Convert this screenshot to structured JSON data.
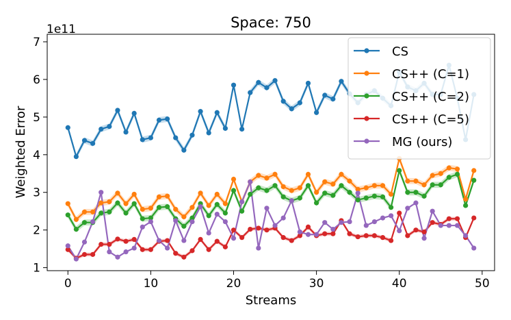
{
  "chart_data": {
    "type": "line",
    "title": "Space: 750",
    "xlabel": "Streams",
    "ylabel": "Weighted Error",
    "y_multiplier_label": "1e11",
    "xlim": [
      -2.5,
      51.5
    ],
    "ylim": [
      0.92,
      7.2
    ],
    "xticks": [
      0,
      10,
      20,
      30,
      40,
      50
    ],
    "xtick_labels": [
      "0",
      "10",
      "20",
      "30",
      "40",
      "50"
    ],
    "yticks": [
      1,
      2,
      3,
      4,
      5,
      6,
      7
    ],
    "ytick_labels": [
      "1",
      "2",
      "3",
      "4",
      "5",
      "6",
      "7"
    ],
    "grid": false,
    "legend_position": "top-right",
    "x": [
      0,
      1,
      2,
      3,
      4,
      5,
      6,
      7,
      8,
      9,
      10,
      11,
      12,
      13,
      14,
      15,
      16,
      17,
      18,
      19,
      20,
      21,
      22,
      23,
      24,
      25,
      26,
      27,
      28,
      29,
      30,
      31,
      32,
      33,
      34,
      35,
      36,
      37,
      38,
      39,
      40,
      41,
      42,
      43,
      44,
      45,
      46,
      47,
      48,
      49
    ],
    "series": [
      {
        "name": "CS",
        "color": "#1f77b4",
        "band": 0.08,
        "values": [
          4.72,
          3.95,
          4.38,
          4.3,
          4.68,
          4.75,
          5.18,
          4.6,
          5.1,
          4.4,
          4.45,
          4.92,
          4.95,
          4.45,
          4.12,
          4.52,
          5.15,
          4.58,
          5.12,
          4.7,
          5.85,
          4.68,
          5.65,
          5.92,
          5.78,
          5.97,
          5.42,
          5.22,
          5.38,
          5.9,
          5.12,
          5.58,
          5.48,
          5.95,
          5.62,
          5.38,
          5.6,
          5.7,
          5.5,
          5.3,
          6.2,
          5.8,
          5.7,
          5.9,
          5.6,
          5.6,
          6.38,
          5.5,
          4.4,
          5.6
        ]
      },
      {
        "name": "CS++ (C=1)",
        "color": "#ff7f0e",
        "band": 0.08,
        "values": [
          2.7,
          2.28,
          2.48,
          2.48,
          2.72,
          2.75,
          2.98,
          2.7,
          2.95,
          2.55,
          2.58,
          2.88,
          2.9,
          2.55,
          2.35,
          2.6,
          2.98,
          2.65,
          2.95,
          2.7,
          3.35,
          2.75,
          3.28,
          3.45,
          3.38,
          3.48,
          3.15,
          3.05,
          3.12,
          3.48,
          3.0,
          3.28,
          3.22,
          3.48,
          3.3,
          3.08,
          3.12,
          3.18,
          3.18,
          2.95,
          3.9,
          3.3,
          3.3,
          3.2,
          3.45,
          3.5,
          3.65,
          3.62,
          2.82,
          3.58
        ]
      },
      {
        "name": "CS++ (C=2)",
        "color": "#2ca02c",
        "band": 0.08,
        "values": [
          2.4,
          2.02,
          2.2,
          2.2,
          2.45,
          2.48,
          2.72,
          2.45,
          2.7,
          2.3,
          2.32,
          2.6,
          2.62,
          2.3,
          2.1,
          2.32,
          2.7,
          2.38,
          2.68,
          2.45,
          3.05,
          2.5,
          2.95,
          3.12,
          3.05,
          3.18,
          2.88,
          2.78,
          2.85,
          3.18,
          2.72,
          2.98,
          2.92,
          3.18,
          3.0,
          2.8,
          2.85,
          2.9,
          2.88,
          2.6,
          3.58,
          3.0,
          3.0,
          2.9,
          3.2,
          3.2,
          3.4,
          3.48,
          2.65,
          3.32
        ]
      },
      {
        "name": "CS++ (C=5)",
        "color": "#d62728",
        "band": 0.05,
        "values": [
          1.48,
          1.25,
          1.35,
          1.35,
          1.62,
          1.62,
          1.76,
          1.7,
          1.75,
          1.48,
          1.48,
          1.7,
          1.72,
          1.38,
          1.28,
          1.45,
          1.75,
          1.48,
          1.7,
          1.55,
          2.0,
          1.8,
          2.02,
          2.05,
          2.0,
          2.05,
          1.8,
          1.72,
          1.85,
          2.08,
          1.85,
          1.9,
          1.9,
          2.25,
          1.9,
          1.82,
          1.85,
          1.85,
          1.8,
          1.72,
          2.45,
          1.85,
          2.0,
          1.95,
          2.2,
          2.15,
          2.3,
          2.3,
          1.8,
          2.32
        ]
      },
      {
        "name": "MG (ours)",
        "color": "#9467bd",
        "band": 0,
        "values": [
          1.58,
          1.23,
          1.68,
          2.22,
          3.0,
          1.42,
          1.28,
          1.42,
          1.52,
          2.08,
          2.22,
          1.72,
          1.52,
          2.25,
          1.72,
          2.22,
          2.62,
          1.92,
          2.42,
          2.22,
          1.78,
          2.75,
          3.28,
          1.52,
          2.58,
          2.12,
          2.32,
          2.78,
          1.95,
          1.88,
          1.88,
          2.2,
          2.02,
          2.2,
          2.22,
          2.98,
          2.12,
          2.22,
          2.32,
          2.38,
          1.98,
          2.58,
          2.72,
          1.78,
          2.5,
          2.12,
          2.12,
          2.12,
          1.85,
          1.52
        ]
      }
    ]
  }
}
